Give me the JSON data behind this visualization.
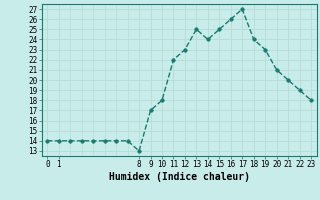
{
  "x": [
    0,
    1,
    2,
    3,
    4,
    5,
    6,
    7,
    8,
    9,
    10,
    11,
    12,
    13,
    14,
    15,
    16,
    17,
    18,
    19,
    20,
    21,
    22,
    23
  ],
  "y": [
    14,
    14,
    14,
    14,
    14,
    14,
    14,
    14,
    13,
    17,
    18,
    22,
    23,
    25,
    24,
    25,
    26,
    27,
    24,
    23,
    21,
    20,
    19,
    18
  ],
  "line_color": "#1a7a6e",
  "marker_color": "#1a7a6e",
  "bg_color": "#c8ecea",
  "grid_major_color": "#b8ddd8",
  "grid_minor_color": "#daeee8",
  "xlabel": "Humidex (Indice chaleur)",
  "ylim_min": 13,
  "ylim_max": 27,
  "xlim_min": 0,
  "xlim_max": 23,
  "yticks": [
    13,
    14,
    15,
    16,
    17,
    18,
    19,
    20,
    21,
    22,
    23,
    24,
    25,
    26,
    27
  ],
  "xtick_positions": [
    0,
    1,
    8,
    9,
    10,
    11,
    12,
    13,
    14,
    15,
    16,
    17,
    18,
    19,
    20,
    21,
    22,
    23
  ],
  "xtick_labels": [
    "0",
    "1",
    "8",
    "9",
    "10",
    "11",
    "12",
    "13",
    "14",
    "15",
    "16",
    "17",
    "18",
    "19",
    "20",
    "21",
    "22",
    "23"
  ],
  "xlabel_fontsize": 7,
  "tick_fontsize": 5.5,
  "linewidth": 1.0,
  "markersize": 2.5
}
